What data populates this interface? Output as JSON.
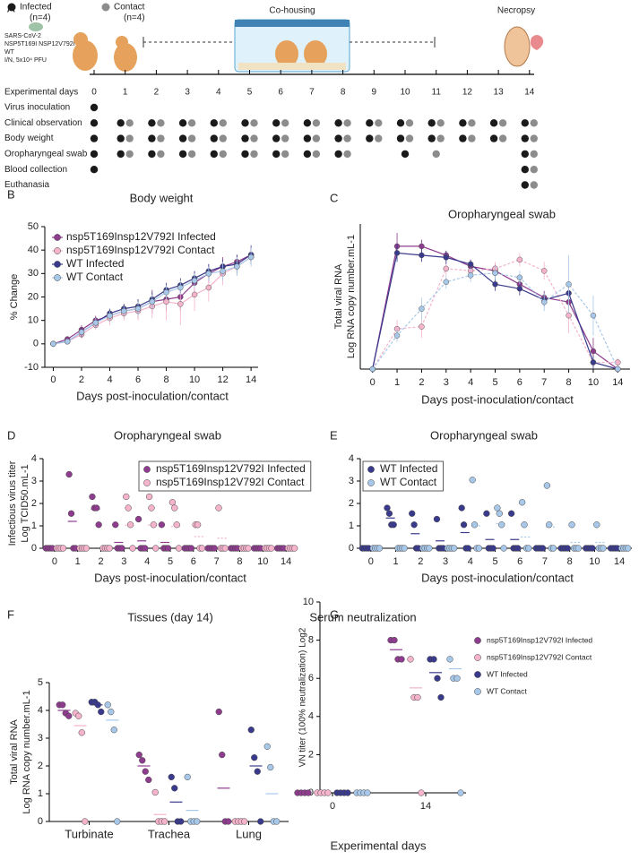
{
  "timeline": {
    "panel": "A",
    "legend": [
      {
        "label": "Infected",
        "n": "(n=4)",
        "color": "#1a1a1a"
      },
      {
        "label": "Contact",
        "n": "(n=4)",
        "color": "#8c8c8c"
      }
    ],
    "virus": [
      "SARS-CoV-2",
      "NSP5T169I NSP12V792I",
      "WT",
      "I/N, 5x10⁴ PFU"
    ],
    "cohousing": "Co-housing",
    "necropsy": "Necropsy",
    "days_label": "Experimental days",
    "days": [
      0,
      1,
      2,
      3,
      4,
      5,
      6,
      7,
      8,
      9,
      10,
      11,
      12,
      13,
      14
    ],
    "rows": [
      {
        "label": "Virus inoculation",
        "infected": [
          0
        ],
        "contact": []
      },
      {
        "label": "Clinical observation",
        "infected": [
          0,
          1,
          2,
          3,
          4,
          5,
          6,
          7,
          8,
          9,
          10,
          11,
          12,
          13,
          14
        ],
        "contact": [
          1,
          2,
          3,
          4,
          5,
          6,
          7,
          8,
          9,
          10,
          11,
          12,
          13,
          14
        ]
      },
      {
        "label": "Body weight",
        "infected": [
          0,
          1,
          2,
          3,
          4,
          5,
          6,
          7,
          8,
          9,
          10,
          11,
          12,
          13,
          14
        ],
        "contact": [
          1,
          2,
          3,
          4,
          5,
          6,
          7,
          8,
          9,
          10,
          11,
          12,
          13,
          14
        ]
      },
      {
        "label": "Oropharyngeal swab",
        "infected": [
          0,
          1,
          2,
          3,
          4,
          5,
          6,
          7,
          8,
          10,
          14
        ],
        "contact": [
          1,
          2,
          3,
          4,
          5,
          6,
          7,
          8,
          11,
          14
        ]
      },
      {
        "label": "Blood collection",
        "infected": [
          0,
          14
        ],
        "contact": [
          14
        ]
      },
      {
        "label": "Euthanasia",
        "infected": [
          14
        ],
        "contact": [
          14
        ]
      }
    ]
  },
  "chart_data": [
    {
      "type": "line",
      "panel": "B",
      "title": "Body weight",
      "ylabel": [
        "% Change"
      ],
      "xlabel": "Days post-inoculation/contact",
      "x": [
        0,
        1,
        2,
        3,
        4,
        5,
        6,
        7,
        8,
        9,
        10,
        11,
        12,
        13,
        14
      ],
      "xlim": [
        -0.6,
        14.5
      ],
      "xticks": [
        0,
        2,
        4,
        6,
        8,
        10,
        12,
        14
      ],
      "ylim": [
        -10,
        50
      ],
      "yticks": [
        -10,
        0,
        10,
        20,
        30,
        40,
        50
      ],
      "legend": "upper left",
      "series": [
        {
          "name": "nsp5T169Insp12V792I Infected",
          "color": "#8e3c8e",
          "values": [
            0,
            2,
            6,
            10,
            12,
            14,
            15,
            18,
            19,
            20,
            26,
            30,
            33,
            35,
            38
          ],
          "errors": [
            0,
            1,
            2,
            2,
            2,
            3,
            4,
            5,
            5,
            6,
            5,
            4,
            4,
            3,
            3
          ]
        },
        {
          "name": "nsp5T169Insp12V792I Contact",
          "color": "#f5b3cc",
          "values": [
            0,
            1,
            4,
            8,
            11,
            13,
            14,
            16,
            18,
            17,
            21,
            24,
            30,
            33,
            37
          ],
          "errors": [
            0,
            1,
            2,
            2,
            3,
            3,
            4,
            5,
            8,
            9,
            7,
            6,
            5,
            4,
            3
          ]
        },
        {
          "name": "WT Infected",
          "color": "#3a3a8c",
          "values": [
            0,
            1,
            5,
            9,
            13,
            15,
            16,
            19,
            23,
            25,
            28,
            31,
            33,
            34,
            38
          ],
          "errors": [
            0,
            1,
            2,
            2,
            2,
            2,
            3,
            3,
            3,
            3,
            3,
            3,
            3,
            4,
            4
          ]
        },
        {
          "name": "WT Contact",
          "color": "#a8c8ea",
          "values": [
            0,
            1,
            5,
            9,
            12,
            14,
            15,
            18,
            22,
            24,
            27,
            30,
            31,
            33,
            37
          ],
          "errors": [
            0,
            1,
            1,
            2,
            2,
            2,
            3,
            3,
            3,
            3,
            3,
            3,
            4,
            4,
            4
          ]
        }
      ]
    },
    {
      "type": "line",
      "panel": "C",
      "title": "Oropharyngeal swab",
      "ylabel": [
        "Total viral  RNA",
        "Log  RNA copy number.mL-1"
      ],
      "xlabel": "Days post-inoculation/contact",
      "categories": [
        "0",
        "1",
        "2",
        "3",
        "4",
        "5",
        "6",
        "7",
        "8",
        "10",
        "14"
      ],
      "ylim": [
        0,
        6.5
      ],
      "series": [
        {
          "color": "#8e3c8e",
          "line_style": "solid",
          "values": [
            0,
            5.5,
            5.5,
            5.1,
            4.6,
            4.4,
            3.8,
            3.2,
            3.0,
            0.8,
            0
          ],
          "errors": [
            0,
            0.6,
            0.3,
            0.2,
            0.3,
            0.3,
            0.3,
            0.3,
            0.5,
            0.6,
            0
          ]
        },
        {
          "color": "#f5b3cc",
          "line_style": "dashed",
          "values": [
            0,
            1.8,
            1.9,
            4.5,
            4.4,
            4.5,
            4.9,
            4.4,
            2.4,
            0.3,
            0.3
          ],
          "errors": [
            0,
            0.4,
            0.5,
            0.3,
            0.3,
            0.3,
            0.3,
            0.4,
            0.8,
            0.3,
            0.2
          ]
        },
        {
          "color": "#3a3a8c",
          "line_style": "solid",
          "values": [
            0,
            5.2,
            5.1,
            5.0,
            4.7,
            3.8,
            3.6,
            3.1,
            3.4,
            0.3,
            0
          ],
          "errors": [
            0,
            0.4,
            0.3,
            0.3,
            0.2,
            0.3,
            0.3,
            0.3,
            0.4,
            0.3,
            0
          ]
        },
        {
          "color": "#a8c8ea",
          "line_style": "dashed",
          "values": [
            0,
            1.5,
            2.7,
            3.9,
            4.2,
            4.3,
            4.1,
            3.0,
            3.8,
            2.4,
            0
          ],
          "errors": [
            0,
            0.3,
            0.5,
            0.3,
            0.3,
            0.3,
            0.3,
            0.4,
            1.3,
            0.9,
            0
          ]
        }
      ]
    },
    {
      "type": "dot",
      "panel": "D",
      "title": "Oropharyngeal swab",
      "ylabel": [
        "Infectious virus titer",
        "Log TCID50.mL-1"
      ],
      "xlabel": "Days post-inoculation/contact",
      "categories": [
        "0",
        "1",
        "2",
        "3",
        "4",
        "5",
        "6",
        "7",
        "8",
        "10",
        "14"
      ],
      "ylim": [
        0,
        4
      ],
      "yticks": [
        0,
        1,
        2,
        3,
        4
      ],
      "legend": "upper right",
      "legend_frame": true,
      "series": [
        {
          "name": "nsp5T169Insp12V792I Infected",
          "color": "#8e3c8e",
          "line_style": "solid",
          "values": [
            [
              0,
              0,
              0,
              0
            ],
            [
              3.3,
              1.55,
              0,
              0
            ],
            [
              2.3,
              1.8,
              1.8,
              1.05
            ],
            [
              1.05,
              0,
              0,
              0
            ],
            [
              1.3,
              0,
              0,
              0
            ],
            [
              1.05,
              0,
              0,
              0
            ],
            [
              0,
              0,
              0,
              0
            ],
            [
              0,
              0,
              0,
              0
            ],
            [
              0,
              0,
              0,
              0
            ],
            [
              0,
              0,
              0,
              0
            ],
            [
              0,
              0,
              0,
              0
            ]
          ],
          "means": [
            0,
            1.2,
            1.75,
            0.26,
            0.33,
            0.26,
            0,
            0,
            0,
            0,
            0
          ]
        },
        {
          "name": "nsp5T169Insp12V792I Contact",
          "color": "#f5b3cc",
          "line_style": "dashed",
          "values": [
            [
              0,
              0,
              0,
              0
            ],
            [
              0,
              0,
              0,
              0
            ],
            [
              0,
              0,
              0,
              0
            ],
            [
              2.3,
              1.8,
              1.05,
              0
            ],
            [
              2.3,
              1.8,
              1.05,
              0
            ],
            [
              2.05,
              1.8,
              1.05,
              0
            ],
            [
              1.05,
              1.05,
              0,
              0
            ],
            [
              1.8,
              0,
              0,
              0
            ],
            [
              0,
              0,
              0,
              0
            ],
            [
              0,
              0,
              0,
              0
            ],
            [
              0,
              0,
              0,
              0
            ]
          ],
          "means": [
            0,
            0,
            0,
            1.03,
            1.03,
            0.97,
            0.52,
            0.45,
            0,
            0,
            0
          ]
        }
      ]
    },
    {
      "type": "dot",
      "panel": "E",
      "title": "Oropharyngeal swab",
      "xlabel": "Days post-inoculation/contact",
      "categories": [
        "0",
        "1",
        "2",
        "3",
        "4",
        "5",
        "6",
        "7",
        "8",
        "10",
        "14"
      ],
      "ylim": [
        0,
        4
      ],
      "yticks": [
        0,
        1,
        2,
        3,
        4
      ],
      "legend": "upper left",
      "legend_frame": true,
      "series": [
        {
          "name": "WT Infected",
          "color": "#3a3a8c",
          "line_style": "solid",
          "values": [
            [
              0,
              0,
              0,
              0
            ],
            [
              1.8,
              1.55,
              1.05,
              1.05
            ],
            [
              1.55,
              1.05,
              0,
              0
            ],
            [
              1.3,
              0,
              0,
              0
            ],
            [
              1.8,
              1.05,
              0,
              0
            ],
            [
              1.55,
              0,
              0,
              0
            ],
            [
              1.55,
              0,
              0,
              0
            ],
            [
              0,
              0,
              0,
              0
            ],
            [
              0,
              0,
              0,
              0
            ],
            [
              0,
              0,
              0,
              0
            ],
            [
              0,
              0,
              0,
              0
            ]
          ],
          "means": [
            0,
            1.35,
            0.65,
            0.33,
            0.7,
            0.39,
            0.39,
            0,
            0,
            0,
            0
          ]
        },
        {
          "name": "WT Contact",
          "color": "#a8c8ea",
          "line_style": "dashed",
          "values": [
            [
              0,
              0,
              0,
              0
            ],
            [
              0,
              0,
              0,
              0
            ],
            [
              0,
              0,
              0,
              0
            ],
            [
              0,
              0,
              0,
              0
            ],
            [
              3.05,
              1.05,
              0,
              0
            ],
            [
              1.8,
              1.55,
              1.05,
              0
            ],
            [
              2.05,
              1.05,
              0,
              0
            ],
            [
              2.8,
              1.05,
              0,
              0
            ],
            [
              1.05,
              0,
              0,
              0
            ],
            [
              1.05,
              0,
              0,
              0
            ],
            [
              0,
              0,
              0,
              0
            ]
          ],
          "means": [
            0,
            0,
            0,
            0,
            1.0,
            1.1,
            0.5,
            0.95,
            0.26,
            0.26,
            0
          ]
        }
      ]
    },
    {
      "type": "dot",
      "panel": "F",
      "title": "Tissues (day 14)",
      "ylabel": [
        "Total viral  RNA",
        "Log  RNA copy number.mL-1"
      ],
      "categories": [
        "Turbinate",
        "Trachea",
        "Lung"
      ],
      "ylim": [
        0,
        5
      ],
      "yticks": [
        0,
        1,
        2,
        3,
        4,
        5
      ],
      "series": [
        {
          "color": "#8e3c8e",
          "values": [
            [
              4.2,
              4.2,
              3.9,
              3.8
            ],
            [
              2.4,
              2.2,
              1.8,
              1.5
            ],
            [
              3.95,
              2.4,
              0,
              0
            ]
          ],
          "means": [
            4.0,
            2.0,
            1.2
          ]
        },
        {
          "color": "#f5b3cc",
          "values": [
            [
              3.9,
              3.8,
              3.2,
              0
            ],
            [
              1.05,
              0,
              0,
              0
            ],
            [
              0,
              0,
              0,
              0
            ]
          ],
          "means": [
            3.45,
            0.25,
            0
          ]
        },
        {
          "color": "#3a3a8c",
          "values": [
            [
              4.3,
              4.3,
              4.2,
              3.95
            ],
            [
              1.6,
              1.2,
              0,
              0
            ],
            [
              3.3,
              2.3,
              1.8,
              0
            ]
          ],
          "means": [
            4.2,
            0.7,
            2.0
          ]
        },
        {
          "color": "#a8c8ea",
          "values": [
            [
              4.2,
              3.95,
              3.3,
              0
            ],
            [
              1.6,
              0,
              0,
              0
            ],
            [
              2.7,
              1.95,
              0,
              0
            ]
          ],
          "means": [
            3.65,
            0.4,
            1.0
          ]
        }
      ]
    },
    {
      "type": "dot",
      "panel": "G",
      "title": "Serum neutralization",
      "ylabel": [
        "VN titer (100% neutralization) Log2"
      ],
      "xlabel": "Experimental days",
      "categories": [
        "0",
        "14"
      ],
      "ylim": [
        0,
        10
      ],
      "yticks": [
        0,
        2,
        4,
        6,
        8,
        10
      ],
      "legend": "right",
      "series": [
        {
          "name": "nsp5T169Insp12V792I Infected",
          "color": "#8e3c8e",
          "values": [
            [
              0,
              0,
              0,
              0
            ],
            [
              8,
              8,
              7,
              7
            ]
          ],
          "means": [
            0,
            7.5
          ]
        },
        {
          "name": "nsp5T169Insp12V792I Contact",
          "color": "#f5b3cc",
          "values": [
            [
              0,
              0,
              0,
              0
            ],
            [
              7,
              5,
              5,
              0
            ]
          ],
          "means": [
            0,
            5.5
          ]
        },
        {
          "name": "WT Infected",
          "color": "#3a3a8c",
          "values": [
            [
              0,
              0,
              0,
              0
            ],
            [
              7,
              7,
              6,
              5
            ]
          ],
          "means": [
            0,
            6.3
          ]
        },
        {
          "name": "WT Contact",
          "color": "#a8c8ea",
          "values": [
            [
              0,
              0,
              0,
              0
            ],
            [
              7,
              6,
              6,
              0
            ]
          ],
          "means": [
            0,
            6.5
          ]
        }
      ]
    }
  ]
}
